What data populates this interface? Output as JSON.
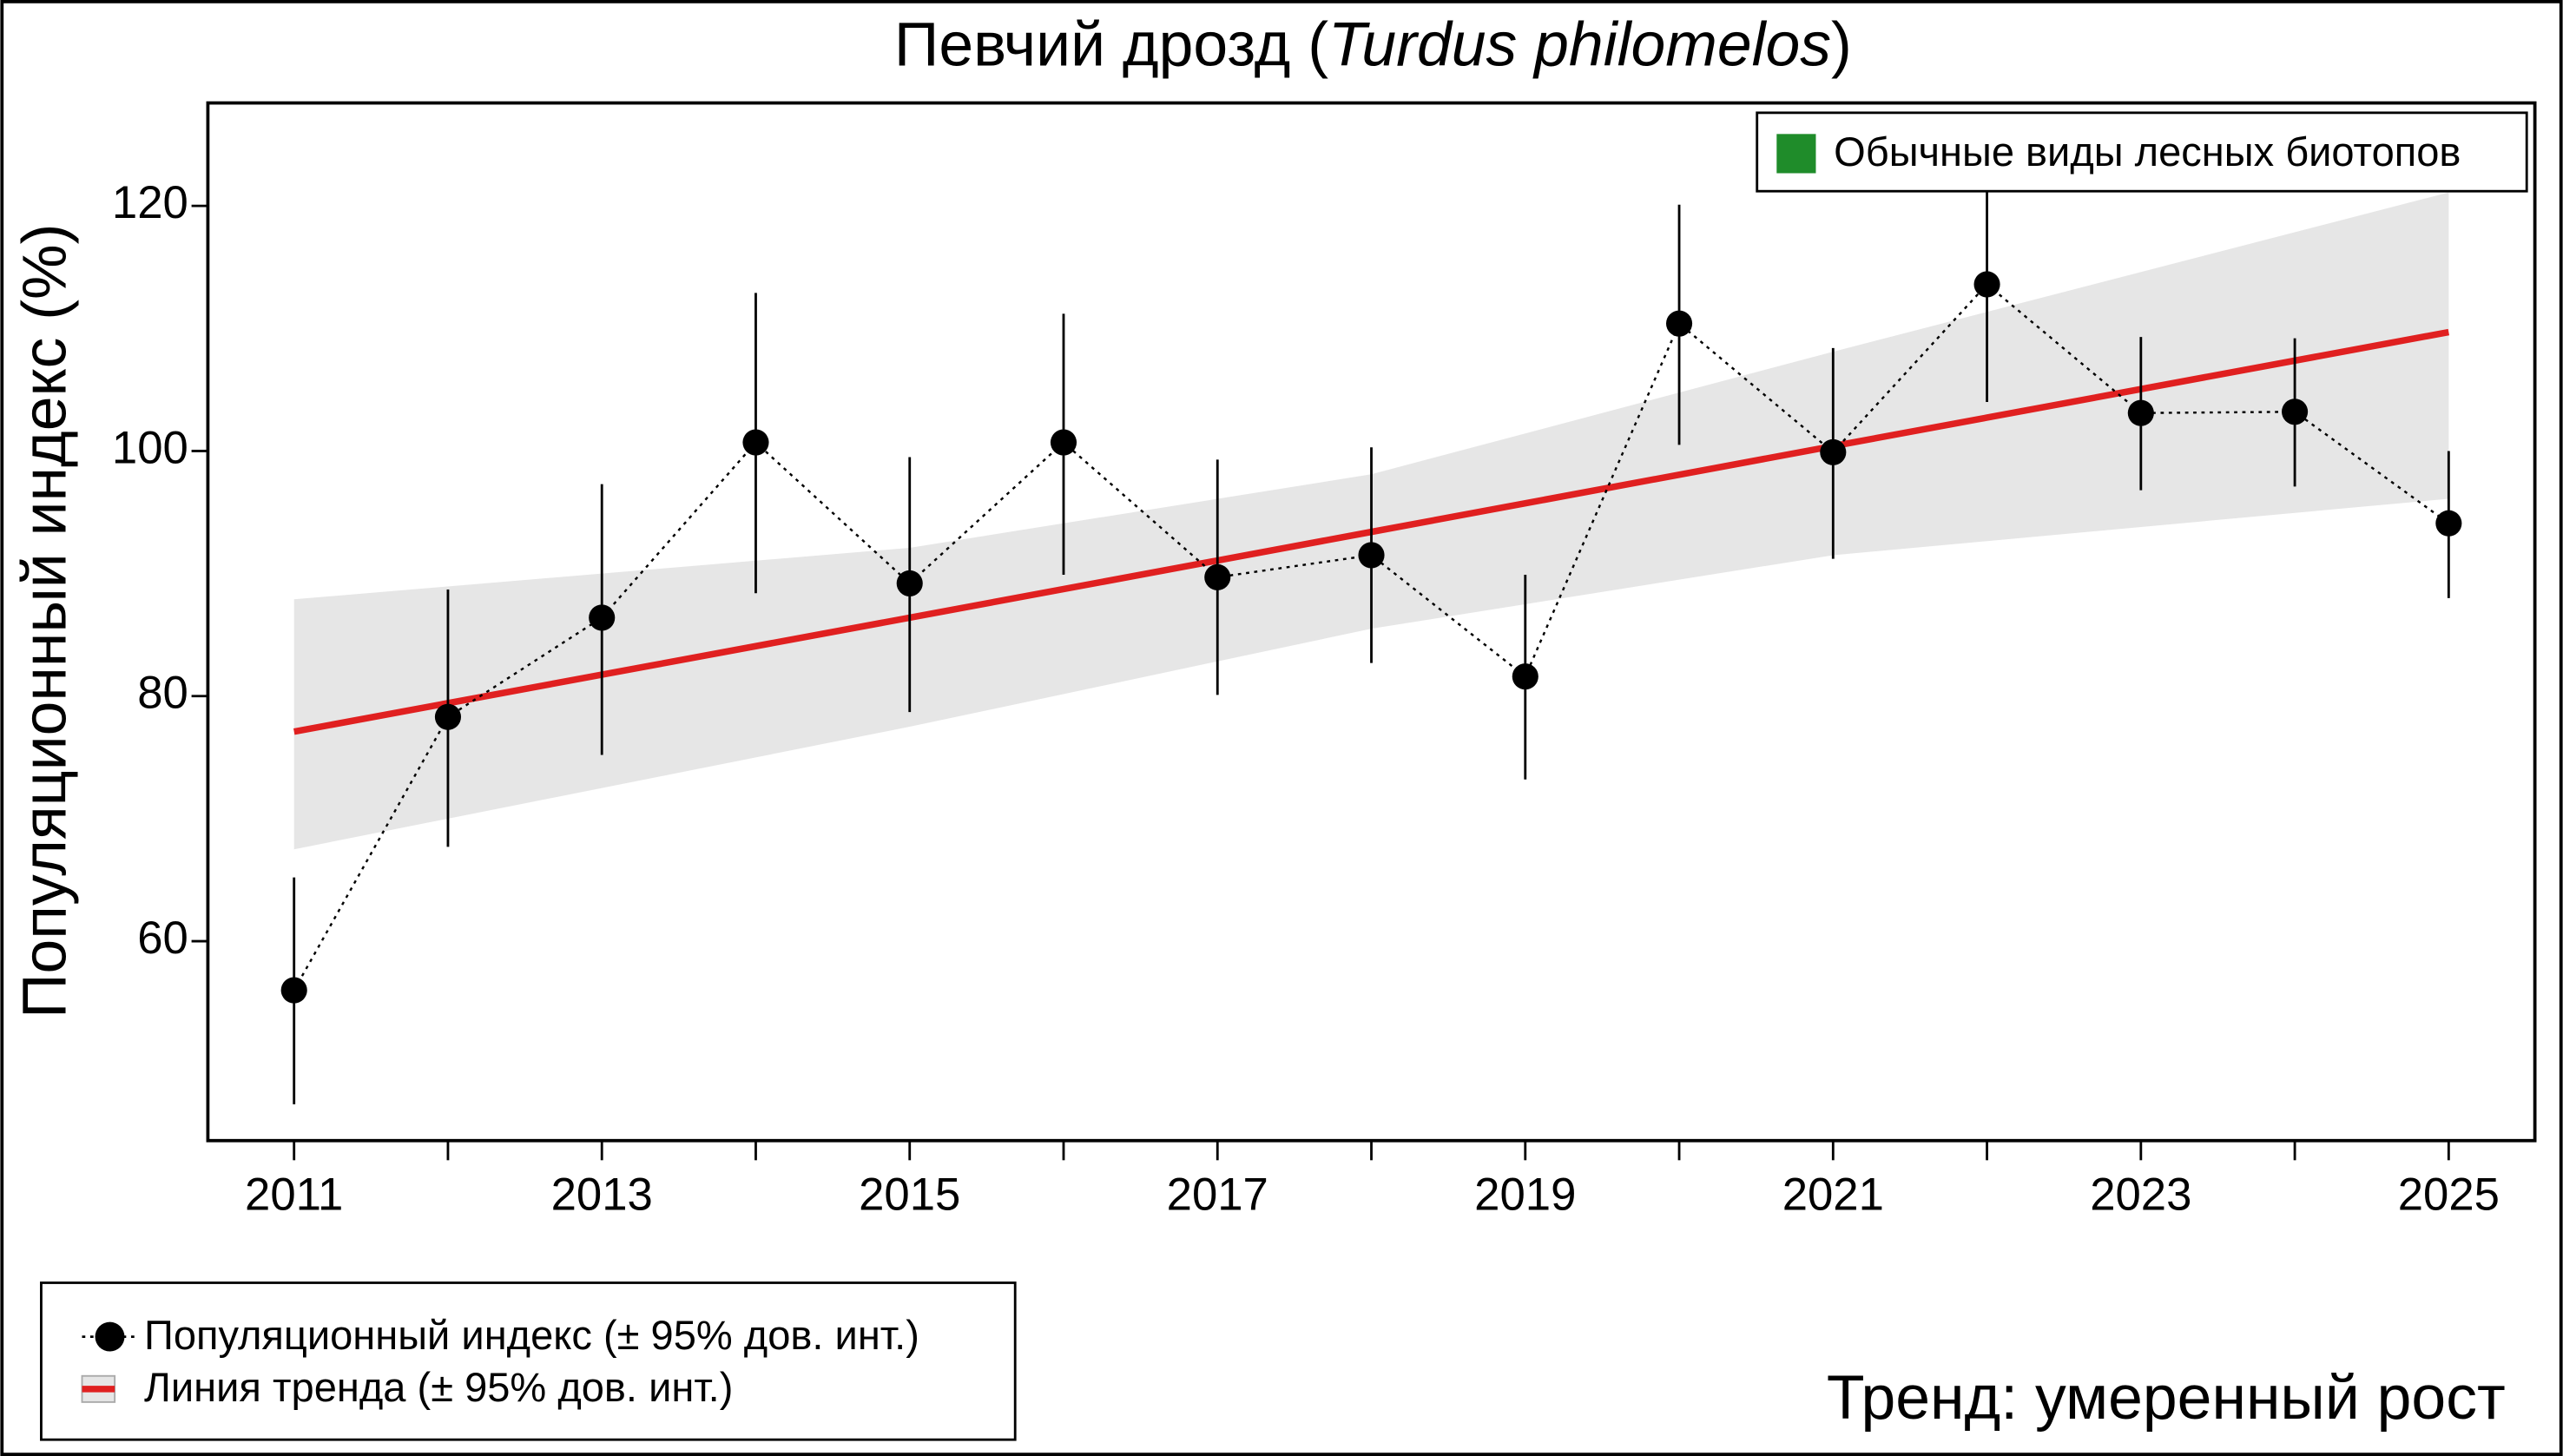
{
  "chart_data": {
    "type": "line",
    "title": [
      "Певчий дрозд (",
      "Turdus philomelos",
      ")"
    ],
    "ylabel": "Популяционный индекс (%)",
    "group_legend": {
      "label": "Обычные виды лесных биотопов",
      "color": "#1f8c2a"
    },
    "trend_label": {
      "text": "Тренд: умеренный рост",
      "color": "#1f8c2a"
    },
    "xlim": [
      2010.44,
      2025.56
    ],
    "ylim": [
      43.73,
      128.4
    ],
    "xticks": [
      2011,
      {
        "value": 2012,
        "label": null
      },
      2013,
      {
        "value": 2014,
        "label": null
      },
      2015,
      {
        "value": 2016,
        "label": null
      },
      2017,
      {
        "value": 2018,
        "label": null
      },
      2019,
      {
        "value": 2020,
        "label": null
      },
      2021,
      {
        "value": 2022,
        "label": null
      },
      2023,
      {
        "value": 2024,
        "label": null
      },
      2025
    ],
    "yticks": [
      60,
      80,
      100,
      120
    ],
    "series": [
      {
        "name": "Популяционный индекс (± 95% дов. инт.)",
        "color": "#000000",
        "x": [
          2011,
          2012,
          2013,
          2014,
          2015,
          2016,
          2017,
          2018,
          2019,
          2020,
          2021,
          2022,
          2023,
          2024,
          2025
        ],
        "values": [
          56.0,
          78.3,
          86.4,
          100.7,
          89.2,
          100.7,
          89.7,
          91.5,
          81.6,
          110.4,
          99.9,
          113.6,
          103.1,
          103.2,
          94.1
        ],
        "lower": [
          46.7,
          67.7,
          75.2,
          88.4,
          78.7,
          89.9,
          80.1,
          82.7,
          73.2,
          100.5,
          91.2,
          104.0,
          96.8,
          97.1,
          88.0
        ],
        "upper": [
          65.2,
          88.7,
          97.3,
          112.9,
          99.5,
          111.2,
          99.3,
          100.3,
          89.9,
          120.1,
          108.4,
          121.7,
          109.3,
          109.2,
          100.0
        ]
      },
      {
        "name": "Линия тренда (± 95% дов. инт.)",
        "color": "#e02020",
        "band_color": "#e6e6e6",
        "x": [
          2011,
          2015,
          2018,
          2021,
          2025
        ],
        "values": [
          77.1,
          86.4,
          93.4,
          100.4,
          109.7
        ],
        "lower": [
          67.5,
          77.5,
          85.5,
          91.5,
          96.1
        ],
        "upper": [
          87.9,
          92.1,
          98.1,
          108.1,
          121.1
        ]
      }
    ]
  }
}
